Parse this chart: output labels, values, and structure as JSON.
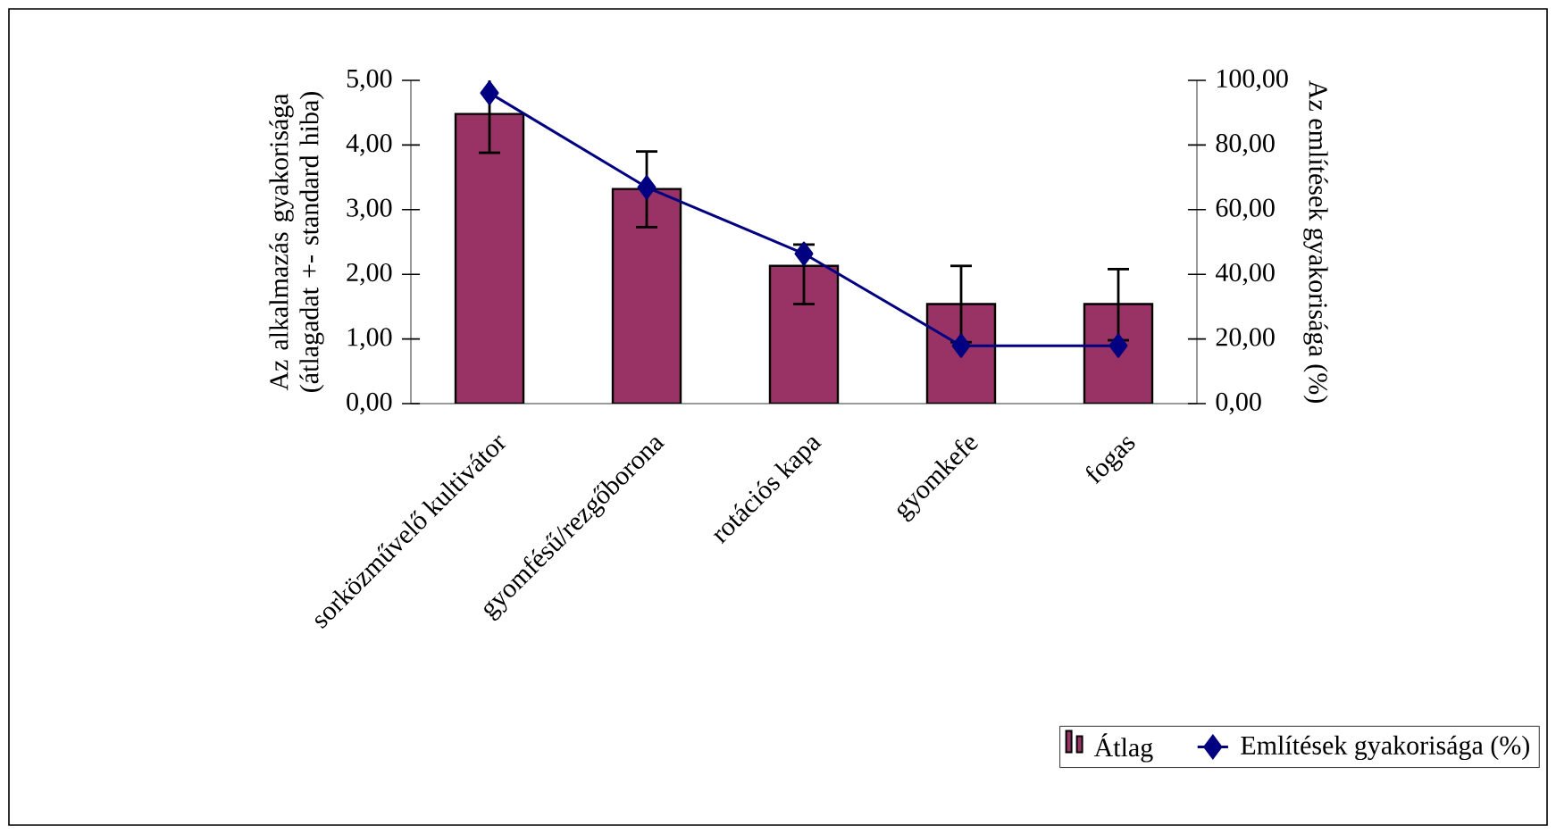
{
  "chart_data": {
    "type": "bar",
    "categories": [
      "sorközművelő kultivátor",
      "gyomfésű/rezgőborona",
      "rotációs kapa",
      "gyomkefe",
      "fogas"
    ],
    "ylabel": "Az alkalmazás gyakorisága (átlagadat +- standard hiba)",
    "y2label": "Az említések gyakorisága (%)",
    "ylim": [
      0,
      5
    ],
    "yticks": [
      {
        "value": 0,
        "label": "0,00"
      },
      {
        "value": 1,
        "label": "1,00"
      },
      {
        "value": 2,
        "label": "2,00"
      },
      {
        "value": 3,
        "label": "3,00"
      },
      {
        "value": 4,
        "label": "4,00"
      },
      {
        "value": 5,
        "label": "5,00"
      }
    ],
    "y2lim": [
      0,
      100
    ],
    "y2ticks": [
      {
        "value": 0,
        "label": "0,00"
      },
      {
        "value": 20,
        "label": "20,00"
      },
      {
        "value": 40,
        "label": "40,00"
      },
      {
        "value": 60,
        "label": "60,00"
      },
      {
        "value": 80,
        "label": "80,00"
      },
      {
        "value": 100,
        "label": "100,00"
      }
    ],
    "series": [
      {
        "name": "Átlag",
        "color": "#993366",
        "values": [
          4.48,
          3.32,
          2.13,
          1.54,
          1.54
        ],
        "errors": [
          [
            3.88,
            5.08
          ],
          [
            2.73,
            3.9
          ],
          [
            1.54,
            2.46
          ],
          [
            0.95,
            2.13
          ],
          [
            0.98,
            2.08
          ]
        ]
      },
      {
        "name": "Említések gyakorisága (%)",
        "type": "line",
        "axis": "y2",
        "color": "#000080",
        "marker": "diamond",
        "line_style": "solid",
        "values": [
          96.1,
          66.9,
          46.4,
          17.9,
          17.9
        ]
      }
    ],
    "grid": false,
    "legend": "bottom right"
  }
}
